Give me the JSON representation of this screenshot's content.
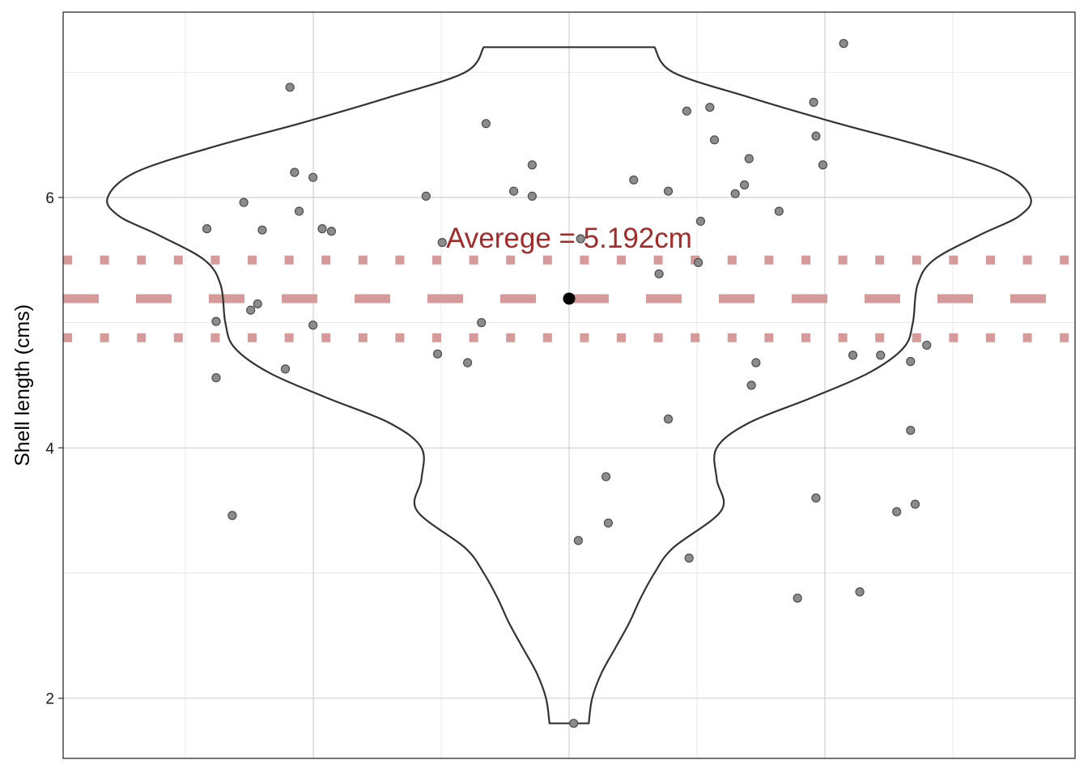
{
  "chart_data": {
    "type": "violin",
    "title": "",
    "xlabel": "",
    "ylabel": "Shell length (cms)",
    "y_ticks": [
      2,
      4,
      6
    ],
    "ylim": [
      1.52,
      7.48
    ],
    "grid": true,
    "colors": {
      "violin_outline": "#333333",
      "points": "#8c8c8c",
      "points_outline": "#4d4d4d",
      "mean_point": "#000000",
      "reference_lines": "#d69a9a",
      "annotation": "#a52a2a",
      "grid_major": "#bdbdbd",
      "grid_minor": "#e3e3e3"
    },
    "mean": 5.192,
    "mean_minus_sd": 4.88,
    "mean_plus_sd": 5.5,
    "annotation": "Averege = 5.192cm",
    "violin_profile": [
      {
        "y": 1.8,
        "w": 0.085
      },
      {
        "y": 2.0,
        "w": 0.1
      },
      {
        "y": 2.2,
        "w": 0.14
      },
      {
        "y": 2.4,
        "w": 0.2
      },
      {
        "y": 2.6,
        "w": 0.26
      },
      {
        "y": 2.8,
        "w": 0.31
      },
      {
        "y": 3.0,
        "w": 0.37
      },
      {
        "y": 3.2,
        "w": 0.45
      },
      {
        "y": 3.5,
        "w": 0.66
      },
      {
        "y": 3.75,
        "w": 0.64
      },
      {
        "y": 4.0,
        "w": 0.64
      },
      {
        "y": 4.2,
        "w": 0.78
      },
      {
        "y": 4.4,
        "w": 1.05
      },
      {
        "y": 4.6,
        "w": 1.3
      },
      {
        "y": 4.8,
        "w": 1.45
      },
      {
        "y": 5.0,
        "w": 1.49
      },
      {
        "y": 5.3,
        "w": 1.51
      },
      {
        "y": 5.5,
        "w": 1.58
      },
      {
        "y": 5.7,
        "w": 1.78
      },
      {
        "y": 5.85,
        "w": 1.95
      },
      {
        "y": 6.0,
        "w": 2.0
      },
      {
        "y": 6.2,
        "w": 1.88
      },
      {
        "y": 6.4,
        "w": 1.55
      },
      {
        "y": 6.6,
        "w": 1.15
      },
      {
        "y": 6.8,
        "w": 0.78
      },
      {
        "y": 7.0,
        "w": 0.45
      },
      {
        "y": 7.2,
        "w": 0.37
      }
    ],
    "points": [
      {
        "x": -1.57,
        "y": 5.75
      },
      {
        "x": -1.53,
        "y": 5.01
      },
      {
        "x": -1.53,
        "y": 4.56
      },
      {
        "x": -1.46,
        "y": 3.46
      },
      {
        "x": -1.41,
        "y": 5.96
      },
      {
        "x": -1.38,
        "y": 5.1
      },
      {
        "x": -1.35,
        "y": 5.15
      },
      {
        "x": -1.33,
        "y": 5.74
      },
      {
        "x": -1.23,
        "y": 4.63
      },
      {
        "x": -1.21,
        "y": 6.88
      },
      {
        "x": -1.19,
        "y": 6.2
      },
      {
        "x": -1.17,
        "y": 5.89
      },
      {
        "x": -1.11,
        "y": 6.16
      },
      {
        "x": -1.11,
        "y": 4.98
      },
      {
        "x": -1.07,
        "y": 5.75
      },
      {
        "x": -1.03,
        "y": 5.73
      },
      {
        "x": -0.62,
        "y": 6.01
      },
      {
        "x": -0.57,
        "y": 4.75
      },
      {
        "x": -0.55,
        "y": 5.64
      },
      {
        "x": -0.44,
        "y": 4.68
      },
      {
        "x": -0.38,
        "y": 5.0
      },
      {
        "x": -0.36,
        "y": 6.59
      },
      {
        "x": -0.24,
        "y": 6.05
      },
      {
        "x": -0.16,
        "y": 6.26
      },
      {
        "x": -0.16,
        "y": 6.01
      },
      {
        "x": 0.02,
        "y": 1.8
      },
      {
        "x": 0.04,
        "y": 3.26
      },
      {
        "x": 0.05,
        "y": 5.67
      },
      {
        "x": 0.16,
        "y": 3.77
      },
      {
        "x": 0.17,
        "y": 3.4
      },
      {
        "x": 0.28,
        "y": 6.14
      },
      {
        "x": 0.39,
        "y": 5.39
      },
      {
        "x": 0.43,
        "y": 6.05
      },
      {
        "x": 0.43,
        "y": 4.23
      },
      {
        "x": 0.52,
        "y": 3.12
      },
      {
        "x": 0.51,
        "y": 6.69
      },
      {
        "x": 0.57,
        "y": 5.81
      },
      {
        "x": 0.56,
        "y": 5.48
      },
      {
        "x": 0.61,
        "y": 6.72
      },
      {
        "x": 0.63,
        "y": 6.46
      },
      {
        "x": 0.72,
        "y": 6.03
      },
      {
        "x": 0.76,
        "y": 6.1
      },
      {
        "x": 0.78,
        "y": 6.31
      },
      {
        "x": 0.79,
        "y": 4.5
      },
      {
        "x": 0.81,
        "y": 4.68
      },
      {
        "x": 0.91,
        "y": 5.89
      },
      {
        "x": 0.99,
        "y": 2.8
      },
      {
        "x": 1.06,
        "y": 6.76
      },
      {
        "x": 1.07,
        "y": 6.49
      },
      {
        "x": 1.07,
        "y": 3.6
      },
      {
        "x": 1.1,
        "y": 6.26
      },
      {
        "x": 1.19,
        "y": 7.23
      },
      {
        "x": 1.23,
        "y": 4.74
      },
      {
        "x": 1.26,
        "y": 2.85
      },
      {
        "x": 1.35,
        "y": 4.74
      },
      {
        "x": 1.42,
        "y": 3.49
      },
      {
        "x": 1.48,
        "y": 4.14
      },
      {
        "x": 1.48,
        "y": 4.69
      },
      {
        "x": 1.5,
        "y": 3.55
      },
      {
        "x": 1.55,
        "y": 4.82
      }
    ]
  }
}
